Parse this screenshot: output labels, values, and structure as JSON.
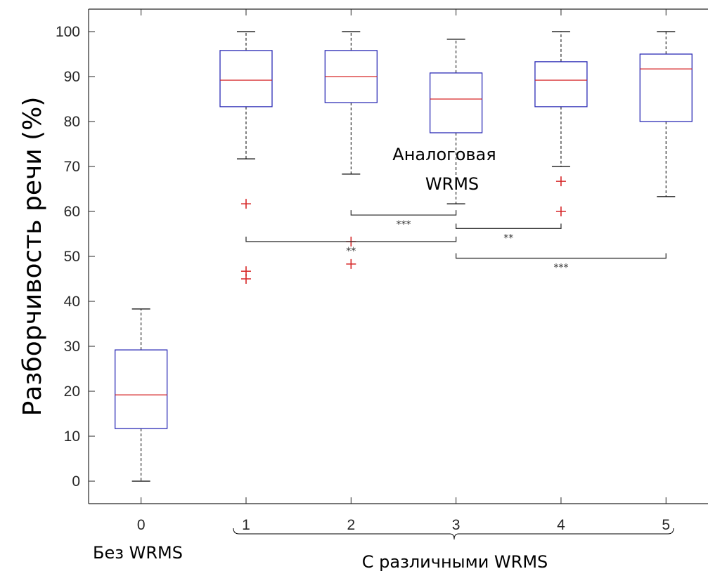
{
  "chart_data": {
    "type": "box",
    "ylabel": "Разборчивость речи (%)",
    "xlabel": "",
    "title": "",
    "ylim": [
      -5,
      105
    ],
    "xlim": [
      -0.5,
      5.4
    ],
    "yticks": [
      "0",
      "10",
      "20",
      "30",
      "40",
      "50",
      "60",
      "70",
      "80",
      "90",
      "100"
    ],
    "grid": false,
    "categories": [
      "0",
      "1",
      "2",
      "3",
      "4",
      "5"
    ],
    "boxes": [
      {
        "x": 0,
        "whisker_low": 0,
        "q1": 11.7,
        "median": 19.2,
        "q3": 29.2,
        "whisker_high": 38.3,
        "outliers": []
      },
      {
        "x": 1,
        "whisker_low": 71.7,
        "q1": 83.3,
        "median": 89.2,
        "q3": 95.8,
        "whisker_high": 100,
        "outliers": [
          61.7,
          46.7,
          45.0
        ]
      },
      {
        "x": 2,
        "whisker_low": 68.3,
        "q1": 84.2,
        "median": 90.0,
        "q3": 95.8,
        "whisker_high": 100,
        "outliers": [
          53.3,
          48.3
        ]
      },
      {
        "x": 3,
        "whisker_low": 61.7,
        "q1": 77.5,
        "median": 85.0,
        "q3": 90.8,
        "whisker_high": 98.3,
        "outliers": []
      },
      {
        "x": 4,
        "whisker_low": 70.0,
        "q1": 83.3,
        "median": 89.2,
        "q3": 93.3,
        "whisker_high": 100,
        "outliers": [
          66.7,
          60.0
        ]
      },
      {
        "x": 5,
        "whisker_low": 63.3,
        "q1": 80.0,
        "median": 91.7,
        "q3": 95.0,
        "whisker_high": 100,
        "outliers": []
      }
    ],
    "significance": [
      {
        "x1": 2,
        "x2": 3,
        "y": 59.2,
        "label": "***"
      },
      {
        "x1": 1,
        "x2": 3,
        "y": 53.3,
        "label": "**"
      },
      {
        "x1": 3,
        "x2": 4,
        "y": 56.2,
        "label": "**"
      },
      {
        "x1": 3,
        "x2": 5,
        "y": 49.6,
        "label": "***"
      }
    ],
    "annotations": {
      "analog_line1": "Аналоговая",
      "analog_line2": "WRMS",
      "no_wrms": "Без WRMS",
      "various_wrms": "С различными WRMS"
    },
    "colors": {
      "box": "#2b2bb5",
      "median": "#d62728",
      "outlier": "#d62728",
      "whisker": "#000000",
      "axis": "#262626",
      "bracket": "#333333"
    }
  }
}
